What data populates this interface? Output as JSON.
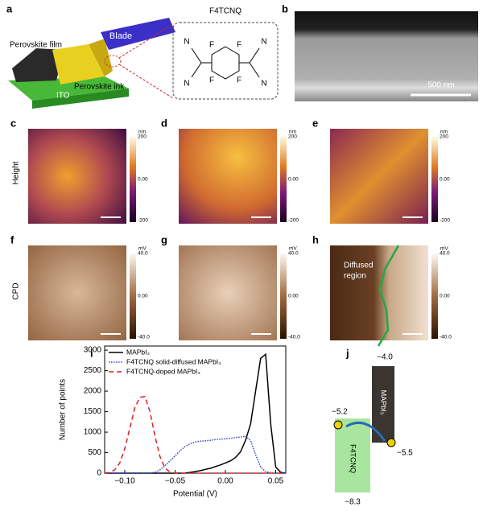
{
  "panels": {
    "a": {
      "label": "a",
      "film": "Perovskite film",
      "blade": "Blade",
      "ink": "Perovskite ink",
      "ito": "ITO",
      "molecule": "F4TCNQ",
      "atoms": [
        "N",
        "N",
        "F",
        "F",
        "F",
        "F",
        "N",
        "N"
      ]
    },
    "b": {
      "label": "b",
      "scale_bar": "500 nm"
    },
    "c": {
      "label": "c"
    },
    "d": {
      "label": "d"
    },
    "e": {
      "label": "e"
    },
    "f": {
      "label": "f"
    },
    "g": {
      "label": "g"
    },
    "h": {
      "label": "h",
      "region": [
        "Diffused",
        "region"
      ]
    },
    "row_labels": {
      "height": "Height",
      "cpd": "CPD"
    },
    "height_colorbar": {
      "unit": "nm",
      "labels": [
        "200",
        "0.00",
        "-200"
      ]
    },
    "cpd_colorbar": {
      "unit": "mV",
      "labels": [
        "40.0",
        "0.00",
        "-40.0"
      ]
    },
    "j": {
      "label": "j",
      "levels": [
        "−4.0",
        "−5.2",
        "−5.5",
        "−8.3"
      ],
      "materials": [
        "MAPbI₃",
        "F4TCNQ"
      ]
    }
  },
  "chart_data": {
    "type": "line",
    "panel_label": "i",
    "x_label": "Potential (V)",
    "y_label": "Number of points",
    "x": [
      -0.12,
      -0.115,
      -0.11,
      -0.105,
      -0.1,
      -0.095,
      -0.09,
      -0.085,
      -0.08,
      -0.075,
      -0.07,
      -0.065,
      -0.06,
      -0.055,
      -0.05,
      -0.045,
      -0.04,
      -0.035,
      -0.03,
      -0.025,
      -0.02,
      -0.015,
      -0.01,
      -0.005,
      0,
      0.005,
      0.01,
      0.015,
      0.02,
      0.025,
      0.03,
      0.035,
      0.04,
      0.045,
      0.05,
      0.055,
      0.06
    ],
    "series": [
      {
        "name": "MAPbI₃",
        "color": "#000000",
        "dash": "none",
        "values": [
          0,
          0,
          0,
          0,
          0,
          0,
          0,
          0,
          0,
          0,
          0,
          0,
          0,
          0,
          0,
          0,
          0,
          20,
          40,
          60,
          90,
          120,
          160,
          200,
          250,
          300,
          380,
          520,
          800,
          1200,
          2000,
          2800,
          2900,
          1200,
          150,
          20,
          0
        ]
      },
      {
        "name": "F4TCNQ solid-diffused MAPbI₃",
        "color": "#3344cc",
        "dash": "1.5 1.5",
        "values": [
          0,
          0,
          0,
          0,
          0,
          0,
          0,
          0,
          0,
          0,
          20,
          80,
          180,
          300,
          420,
          550,
          650,
          720,
          760,
          780,
          790,
          800,
          820,
          830,
          840,
          850,
          870,
          880,
          900,
          800,
          450,
          150,
          40,
          10,
          0,
          0,
          0
        ]
      },
      {
        "name": "F4TCNQ-doped MAPbI₃",
        "color": "#dd2222",
        "dash": "6 4",
        "values": [
          0,
          20,
          80,
          250,
          600,
          1100,
          1600,
          1850,
          1870,
          1500,
          900,
          400,
          120,
          30,
          0,
          0,
          0,
          0,
          0,
          0,
          0,
          0,
          0,
          0,
          0,
          0,
          0,
          0,
          0,
          0,
          0,
          0,
          0,
          0,
          0,
          0,
          0
        ]
      }
    ],
    "xlim": [
      -0.12,
      0.06
    ],
    "ylim": [
      0,
      3100
    ],
    "xticks": [
      {
        "value": -0.1,
        "label": "−0.10"
      },
      {
        "value": -0.05,
        "label": "−0.05"
      },
      {
        "value": 0,
        "label": "0.00"
      },
      {
        "value": 0.05,
        "label": "0.05"
      }
    ],
    "yticks": [
      0,
      500,
      1000,
      1500,
      2000,
      2500,
      3000
    ],
    "legend": "upper left"
  }
}
